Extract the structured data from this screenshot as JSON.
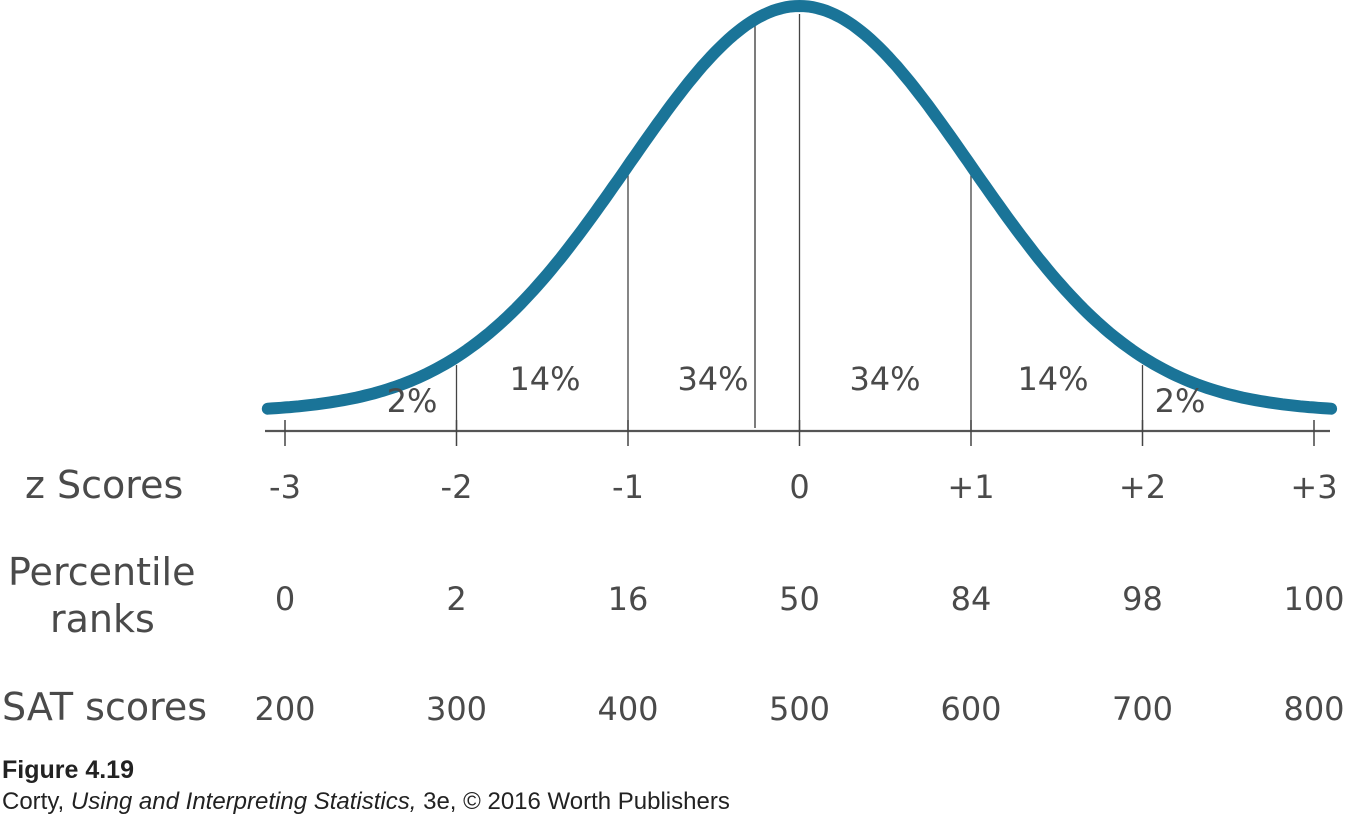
{
  "chart_data": {
    "type": "area",
    "curve": "normal-distribution",
    "curve_color": "#1a7498",
    "axis_color": "#555555",
    "z_scores": [
      "-3",
      "-2",
      "-1",
      "0",
      "+1",
      "+2",
      "+3"
    ],
    "area_percentages": [
      "2%",
      "14%",
      "34%",
      "34%",
      "14%",
      "2%"
    ],
    "rows": [
      {
        "label": "z Scores",
        "values": [
          "-3",
          "-2",
          "-1",
          "0",
          "+1",
          "+2",
          "+3"
        ]
      },
      {
        "label_line1": "Percentile",
        "label_line2": "ranks",
        "values": [
          "0",
          "2",
          "16",
          "50",
          "84",
          "98",
          "100"
        ]
      },
      {
        "label": "SAT scores",
        "values": [
          "200",
          "300",
          "400",
          "500",
          "600",
          "700",
          "800"
        ]
      }
    ]
  },
  "caption": {
    "title": "Figure 4.19",
    "author": "Corty, ",
    "book": "Using and Interpreting Statistics,",
    "rest": " 3e, © 2016 Worth Publishers"
  }
}
